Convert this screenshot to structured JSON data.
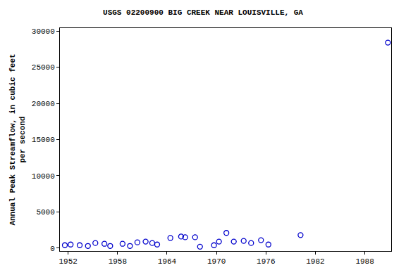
{
  "chart_data": {
    "type": "scatter",
    "title": "USGS 02200900 BIG CREEK NEAR LOUISVILLE, GA",
    "y_label": "Annual Peak Streamflow, in cubic feet\nper second",
    "x": [
      1951.6,
      1952.3,
      1953.4,
      1954.4,
      1955.3,
      1956.4,
      1957.1,
      1958.6,
      1959.5,
      1960.4,
      1961.4,
      1962.2,
      1962.8,
      1964.4,
      1965.7,
      1966.2,
      1967.4,
      1968.0,
      1969.7,
      1970.3,
      1971.2,
      1972.1,
      1973.3,
      1974.2,
      1975.4,
      1976.3,
      1980.2,
      1990.8
    ],
    "values": [
      400,
      500,
      400,
      300,
      700,
      600,
      300,
      600,
      300,
      800,
      900,
      700,
      500,
      1400,
      1600,
      1500,
      1500,
      200,
      400,
      900,
      2100,
      900,
      1000,
      700,
      1100,
      500,
      1800,
      28400
    ],
    "color": "#0000cc",
    "marker": "open-circle",
    "xlim": [
      1951,
      1991.2
    ],
    "xticks": [
      1952,
      1958,
      1964,
      1970,
      1976,
      1982,
      1988
    ],
    "ylim": [
      -400,
      30400
    ],
    "yticks": [
      0,
      5000,
      10000,
      15000,
      20000,
      25000,
      30000
    ],
    "grid": false
  }
}
